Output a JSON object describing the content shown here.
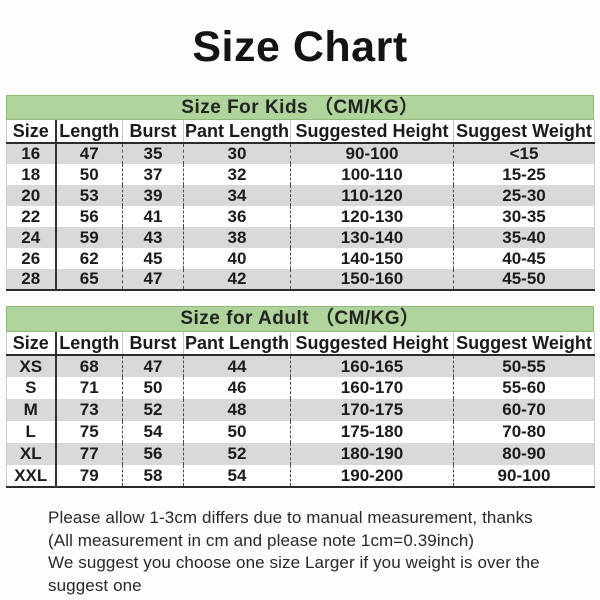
{
  "page_title": "Size Chart",
  "tables": [
    {
      "banner": "Size For Kids （CM/KG）",
      "columns": [
        "Size",
        "Length",
        "Burst",
        "Pant Length",
        "Suggested Height",
        "Suggest Weight"
      ],
      "rows": [
        [
          "16",
          "47",
          "35",
          "30",
          "90-100",
          "<15"
        ],
        [
          "18",
          "50",
          "37",
          "32",
          "100-110",
          "15-25"
        ],
        [
          "20",
          "53",
          "39",
          "34",
          "110-120",
          "25-30"
        ],
        [
          "22",
          "56",
          "41",
          "36",
          "120-130",
          "30-35"
        ],
        [
          "24",
          "59",
          "43",
          "38",
          "130-140",
          "35-40"
        ],
        [
          "26",
          "62",
          "45",
          "40",
          "140-150",
          "40-45"
        ],
        [
          "28",
          "65",
          "47",
          "42",
          "150-160",
          "45-50"
        ]
      ]
    },
    {
      "banner": "Size for Adult （CM/KG）",
      "columns": [
        "Size",
        "Length",
        "Burst",
        "Pant Length",
        "Suggested Height",
        "Suggest Weight"
      ],
      "rows": [
        [
          "XS",
          "68",
          "47",
          "44",
          "160-165",
          "50-55"
        ],
        [
          "S",
          "71",
          "50",
          "46",
          "160-170",
          "55-60"
        ],
        [
          "M",
          "73",
          "52",
          "48",
          "170-175",
          "60-70"
        ],
        [
          "L",
          "75",
          "54",
          "50",
          "175-180",
          "70-80"
        ],
        [
          "XL",
          "77",
          "56",
          "52",
          "180-190",
          "80-90"
        ],
        [
          "XXL",
          "79",
          "58",
          "54",
          "190-200",
          "90-100"
        ]
      ]
    }
  ],
  "notes": [
    "Please allow 1-3cm differs due to manual measurement, thanks",
    "(All measurement in cm and please note 1cm=0.39inch)",
    "We suggest you choose one size Larger if you weight is over the suggest one"
  ],
  "colors": {
    "banner_green": "#afd49c",
    "row_gray": "#d9d9d9",
    "line_dark": "#2b2b2b"
  }
}
